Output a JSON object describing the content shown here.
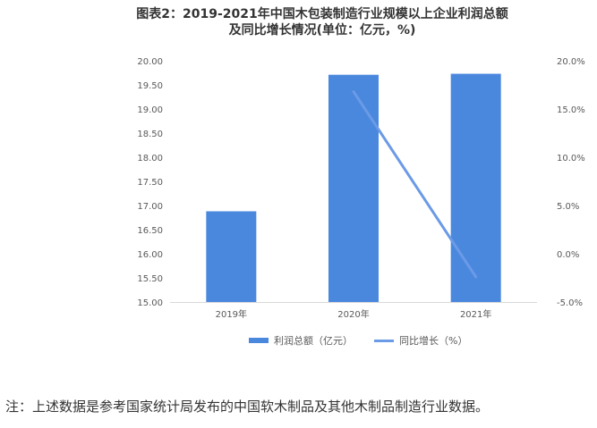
{
  "title_line1": "图表2：2019-2021年中国木包装制造行业规模以上企业利润总额",
  "title_line2": "及同比增长情况(单位：亿元，%)",
  "note": "注：上述数据是参考国家统计局发布的中国软木制品及其他木制品制造行业数据。",
  "chart_data": {
    "type": "bar",
    "title": "图表2：2019-2021年中国木包装制造行业规模以上企业利润总额及同比增长情况(单位：亿元，%)",
    "categories": [
      "2019年",
      "2020年",
      "2021年"
    ],
    "series": [
      {
        "name": "利润总额（亿元）",
        "type": "bar",
        "axis": "left",
        "values": [
          16.88,
          19.71,
          19.73
        ],
        "color": "#4a88de"
      },
      {
        "name": "同比增长（%）",
        "type": "line",
        "axis": "right",
        "values": [
          null,
          16.8,
          -2.4
        ],
        "color": "#6b9ae6"
      }
    ],
    "y_left": {
      "min": 15.0,
      "max": 20.0,
      "ticks": [
        "15.00",
        "15.50",
        "16.00",
        "16.50",
        "17.00",
        "17.50",
        "18.00",
        "18.50",
        "19.00",
        "19.50",
        "20.00"
      ]
    },
    "y_right": {
      "min": -5.0,
      "max": 20.0,
      "ticks": [
        "-5.0%",
        "0.0%",
        "5.0%",
        "10.0%",
        "15.0%",
        "20.0%"
      ]
    },
    "grid": false,
    "legend_position": "bottom"
  }
}
